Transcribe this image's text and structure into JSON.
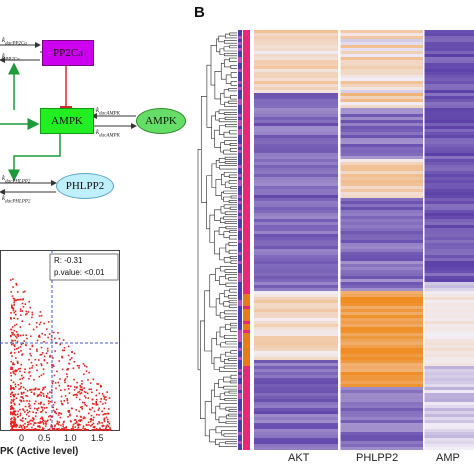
{
  "panel_b": {
    "letter": "B"
  },
  "pathway": {
    "nodes": {
      "pp2ca": "PP2Ca",
      "ampk_active": "AMPK",
      "ampk": "AMPK",
      "phlpp2": "PHLPP2"
    },
    "rates": {
      "r1": "k",
      "r1_sub": "dacPP2Ca",
      "r2": "k",
      "r2_sub": "PP2Ca",
      "r3": "k",
      "r3_sub": "dacAMPK",
      "r4": "k",
      "r4_sub": "dacAMPK",
      "r5": "k",
      "r5_sub": "dacPHLPP2",
      "r6": "k",
      "r6_sub": "dacPHLPP2"
    },
    "colors": {
      "pp2ca": "#cc00ee",
      "ampk_active": "#22ee22",
      "ampk": "#66dd66",
      "phlpp2": "#bfeffa",
      "activation": "#1e9a3a",
      "inhibition": "#d62a2a"
    }
  },
  "scatter": {
    "stats": {
      "r": "R: -0.31",
      "p": "p.value: <0.01"
    },
    "x_ticks": [
      "0",
      "0.5",
      "1.0",
      "1.5"
    ],
    "x_label": "PK (Active level)"
  },
  "heatmap": {
    "columns": [
      "AKT",
      "PHLPP2",
      "AMP"
    ],
    "colors": {
      "low": "#5b3fa8",
      "mid": "#f2eef6",
      "high": "#ef8a1e",
      "annot_a": "#e8267c",
      "annot_b": "#4a3bb0"
    }
  }
}
